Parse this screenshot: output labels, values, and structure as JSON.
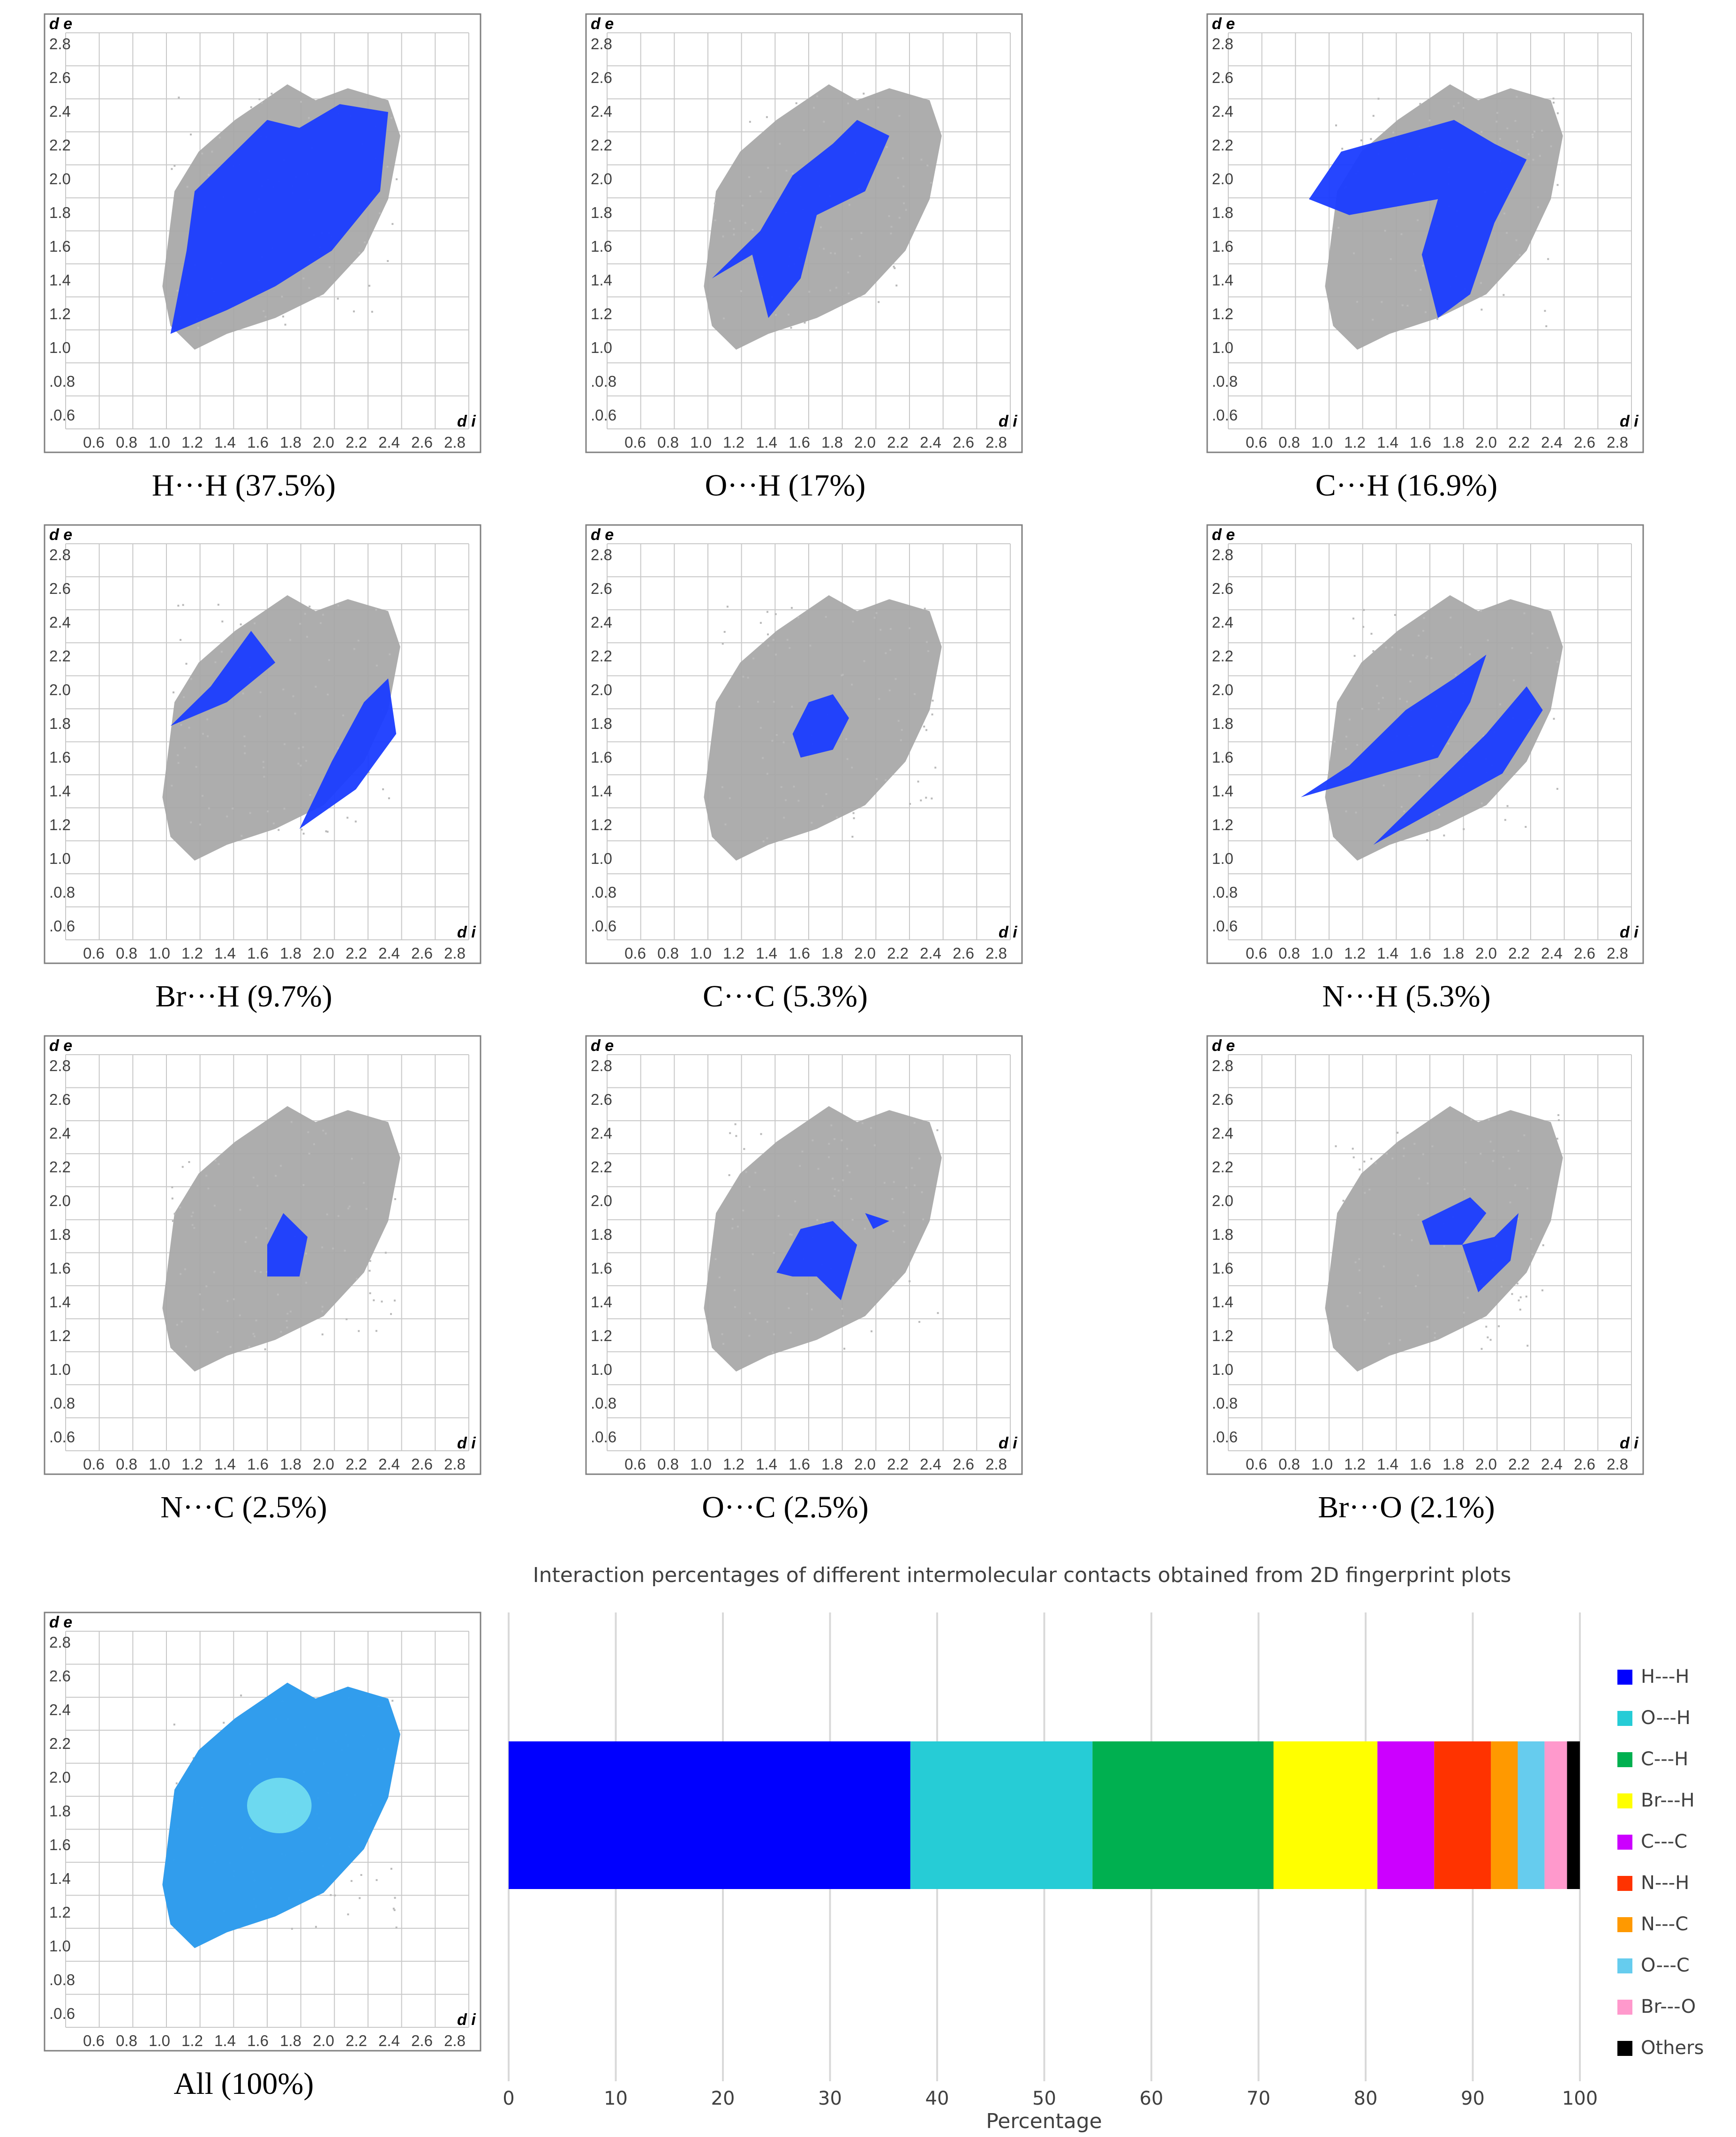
{
  "fingerprint_axes": {
    "ylabel": "d e",
    "xlabel": "d i",
    "yticks": [
      "2.8",
      "2.6",
      "2.4",
      "2.2",
      "2.0",
      "1.8",
      "1.6",
      "1.4",
      "1.2",
      "1.0",
      ".0.8",
      ".0.6"
    ],
    "xticks": [
      "0.6",
      "0.8",
      "1.0",
      "1.2",
      "1.4",
      "1.6",
      "1.8",
      "2.0",
      "2.2",
      "2.4",
      "2.6",
      "2.8"
    ]
  },
  "fingerprints": [
    {
      "label": "H···H (37.5%)",
      "contact": "H---H",
      "percent": 37.5
    },
    {
      "label": "O···H (17%)",
      "contact": "O---H",
      "percent": 17
    },
    {
      "label": "C···H (16.9%)",
      "contact": "C---H",
      "percent": 16.9
    },
    {
      "label": "Br···H (9.7%)",
      "contact": "Br---H",
      "percent": 9.7
    },
    {
      "label": "C···C (5.3%)",
      "contact": "C---C",
      "percent": 5.3
    },
    {
      "label": "N···H (5.3%)",
      "contact": "N---H",
      "percent": 5.3
    },
    {
      "label": "N···C (2.5%)",
      "contact": "N---C",
      "percent": 2.5
    },
    {
      "label": "O···C (2.5%)",
      "contact": "O---C",
      "percent": 2.5
    },
    {
      "label": "Br···O (2.1%)",
      "contact": "Br---O",
      "percent": 2.1
    },
    {
      "label": "All (100%)",
      "contact": "All",
      "percent": 100
    }
  ],
  "chart_data": {
    "type": "bar",
    "orientation": "horizontal-stacked",
    "title": "Interaction percentages of different intermolecular contacts obtained from 2D fingerprint plots",
    "xlabel": "Percentage",
    "ylabel": "",
    "xlim": [
      0,
      100
    ],
    "xticks": [
      0,
      10,
      20,
      30,
      40,
      50,
      60,
      70,
      80,
      90,
      100
    ],
    "grid": "vertical",
    "legend_position": "right",
    "series": [
      {
        "name": "H---H",
        "value": 37.5,
        "color": "#0000ff"
      },
      {
        "name": "O---H",
        "value": 17.0,
        "color": "#26ccd6"
      },
      {
        "name": "C---H",
        "value": 16.9,
        "color": "#00b050"
      },
      {
        "name": "Br---H",
        "value": 9.7,
        "color": "#ffff00"
      },
      {
        "name": "C---C",
        "value": 5.3,
        "color": "#cc00ff"
      },
      {
        "name": "N---H",
        "value": 5.3,
        "color": "#ff3300"
      },
      {
        "name": "N---C",
        "value": 2.5,
        "color": "#ff9900"
      },
      {
        "name": "O---C",
        "value": 2.5,
        "color": "#66ccee"
      },
      {
        "name": "Br---O",
        "value": 2.1,
        "color": "#ff99cc"
      },
      {
        "name": "Others",
        "value": 1.2,
        "color": "#000000"
      }
    ]
  },
  "colors": {
    "grid": "#c8c8c8",
    "cloud_gray": "#a6a6a6",
    "highlight_blue": "#1a3cff"
  }
}
